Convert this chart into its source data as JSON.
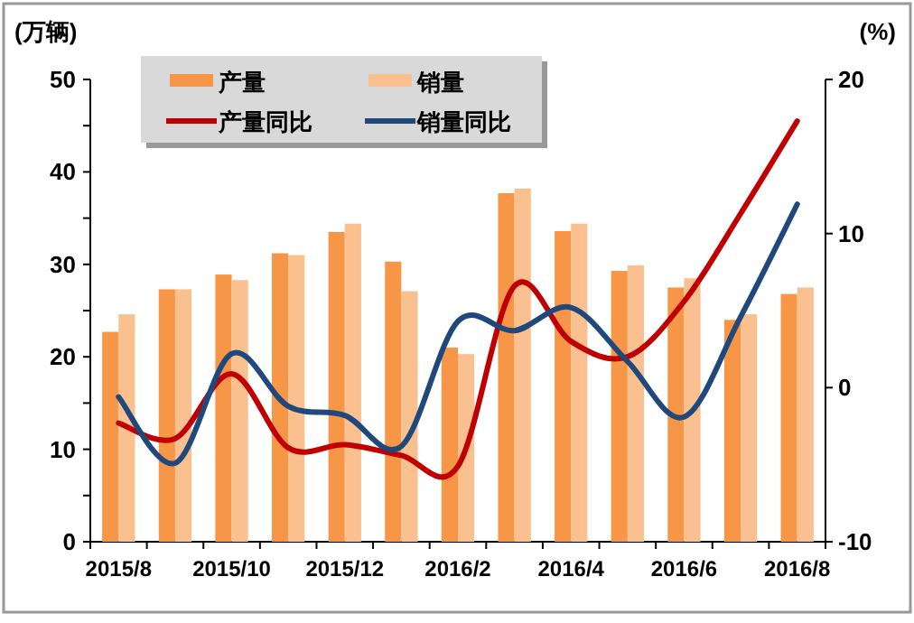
{
  "chart_data": {
    "type": "bar",
    "ylabel": "(万辆)",
    "y2label": "(%)",
    "categories": [
      "2015/8",
      null,
      "2015/10",
      null,
      "2015/12",
      null,
      "2016/2",
      null,
      "2016/4",
      null,
      "2016/6",
      null,
      "2016/8"
    ],
    "series": [
      {
        "name": "产量",
        "color": "#f79646",
        "values": [
          22.7,
          27.3,
          28.9,
          31.2,
          33.5,
          30.3,
          21.0,
          37.7,
          33.6,
          29.3,
          27.5,
          24.0,
          26.8
        ]
      },
      {
        "name": "销量",
        "color": "#fac090",
        "values": [
          24.6,
          27.3,
          28.3,
          31.0,
          34.4,
          27.1,
          20.3,
          38.2,
          34.4,
          29.9,
          28.5,
          24.6,
          27.5
        ]
      },
      {
        "name": "产量同比",
        "type": "line",
        "axis": "y2",
        "color": "#c00000",
        "values": [
          -2.3,
          -3.3,
          0.9,
          -3.9,
          -3.7,
          -4.4,
          -5.1,
          6.6,
          3.0,
          2.0,
          5.6,
          11.3,
          17.3
        ]
      },
      {
        "name": "销量同比",
        "type": "line",
        "axis": "y2",
        "color": "#1f497d",
        "values": [
          -0.6,
          -4.9,
          2.2,
          -1.2,
          -1.8,
          -3.8,
          4.3,
          3.7,
          5.2,
          1.7,
          -1.9,
          4.6,
          11.9
        ]
      }
    ],
    "ylim": [
      0,
      50
    ],
    "yticks": [
      0,
      {
        "value": 5,
        "label": null
      },
      10,
      {
        "value": 15,
        "label": null
      },
      20,
      {
        "value": 25,
        "label": null
      },
      30,
      {
        "value": 35,
        "label": null
      },
      40,
      {
        "value": 45,
        "label": null
      },
      50
    ],
    "y2lim": [
      -10,
      20
    ],
    "y2ticks": [
      -10,
      0,
      10,
      20
    ],
    "grid": false,
    "legend": "top left",
    "marker": "none",
    "line_style": "solid"
  }
}
